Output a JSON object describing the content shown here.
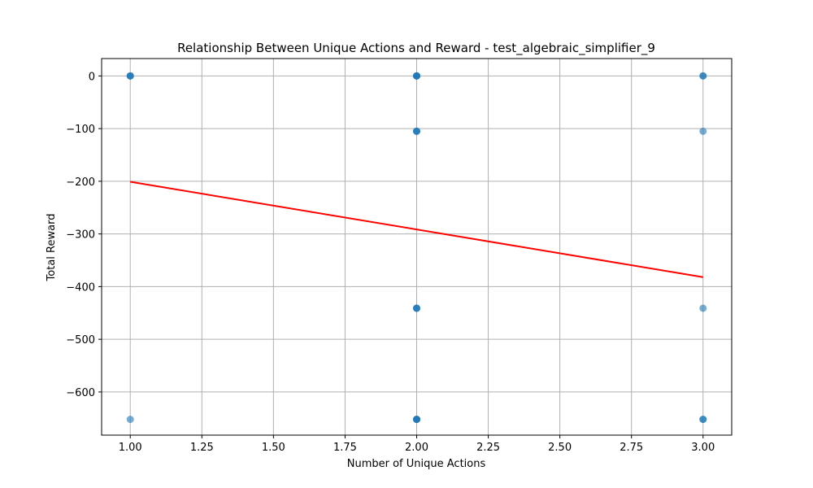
{
  "chart_data": {
    "type": "scatter",
    "title": "Relationship Between Unique Actions and Reward - test_algebraic_simplifier_9",
    "xlabel": "Number of Unique Actions",
    "ylabel": "Total Reward",
    "xlim": [
      0.9,
      3.1
    ],
    "ylim": [
      -682,
      33
    ],
    "grid": true,
    "xticks": [
      1.0,
      1.25,
      1.5,
      1.75,
      2.0,
      2.25,
      2.5,
      2.75,
      3.0
    ],
    "xtick_labels": [
      "1.00",
      "1.25",
      "1.50",
      "1.75",
      "2.00",
      "2.25",
      "2.50",
      "2.75",
      "3.00"
    ],
    "yticks": [
      0,
      -100,
      -200,
      -300,
      -400,
      -500,
      -600
    ],
    "ytick_labels": [
      "0",
      "−100",
      "−200",
      "−300",
      "−400",
      "−500",
      "−600"
    ],
    "points": [
      {
        "x": 1,
        "y": 0
      },
      {
        "x": 1,
        "y": 0
      },
      {
        "x": 1,
        "y": 0
      },
      {
        "x": 1,
        "y": -652
      },
      {
        "x": 2,
        "y": 0
      },
      {
        "x": 2,
        "y": 0
      },
      {
        "x": 2,
        "y": 0
      },
      {
        "x": 2,
        "y": 0
      },
      {
        "x": 2,
        "y": -105
      },
      {
        "x": 2,
        "y": -105
      },
      {
        "x": 2,
        "y": -105
      },
      {
        "x": 2,
        "y": -441
      },
      {
        "x": 2,
        "y": -441
      },
      {
        "x": 2,
        "y": -441
      },
      {
        "x": 2,
        "y": -652
      },
      {
        "x": 2,
        "y": -652
      },
      {
        "x": 2,
        "y": -652
      },
      {
        "x": 2,
        "y": -652
      },
      {
        "x": 3,
        "y": 0
      },
      {
        "x": 3,
        "y": 0
      },
      {
        "x": 3,
        "y": -105
      },
      {
        "x": 3,
        "y": -441
      },
      {
        "x": 3,
        "y": -652
      },
      {
        "x": 3,
        "y": -652
      }
    ],
    "trendline": {
      "x": [
        1,
        3
      ],
      "y": [
        -201,
        -382
      ]
    },
    "colors": {
      "points": "#1f77b4",
      "trendline": "#ff0000",
      "grid": "#b0b0b0"
    }
  }
}
